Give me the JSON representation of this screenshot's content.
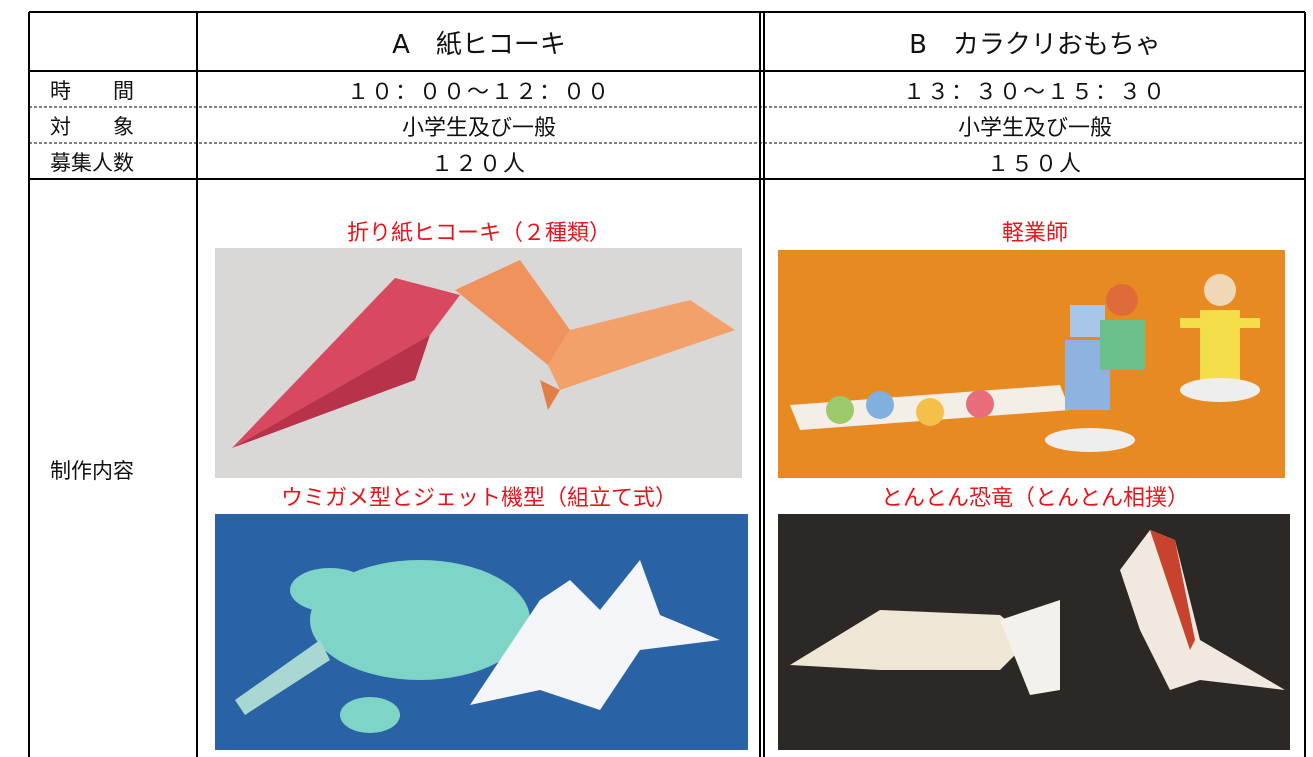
{
  "table": {
    "columns": [
      "A　紙ヒコーキ",
      "B　カラクリおもちゃ"
    ],
    "rows": [
      {
        "label": "時　　間",
        "values": [
          "１０：００～１２：００",
          "１３：３０～１５：３０"
        ]
      },
      {
        "label": "対　　象",
        "values": [
          "小学生及び一般",
          "小学生及び一般"
        ]
      },
      {
        "label": "募集人数",
        "values": [
          "１２０人",
          "１５０人"
        ]
      }
    ],
    "content": {
      "label": "制作内容",
      "columns": [
        {
          "items": [
            {
              "caption": "折り紙ヒコーキ（２種類）"
            },
            {
              "caption": "ウミガメ型とジェット機型（組立て式）"
            }
          ]
        },
        {
          "items": [
            {
              "caption": "軽業師"
            },
            {
              "caption": "とんとん恐竜（とんとん相撲）"
            }
          ]
        }
      ]
    }
  }
}
